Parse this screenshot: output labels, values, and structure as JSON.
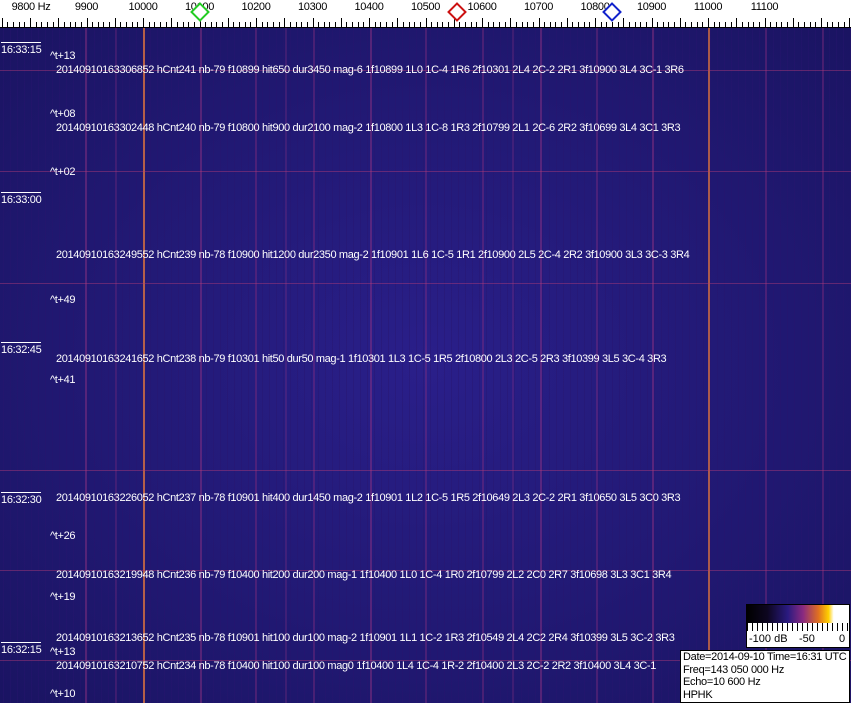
{
  "frequency_axis": {
    "unit_label": "9800 Hz",
    "labels": [
      "9900",
      "10000",
      "10100",
      "10200",
      "10300",
      "10400",
      "10500",
      "10600",
      "10700",
      "10800",
      "10900",
      "11000",
      "11100"
    ]
  },
  "markers": [
    {
      "name": "green-marker",
      "freq": 10100,
      "color": "#22cc22"
    },
    {
      "name": "red-marker",
      "freq": 10555,
      "color": "#cc1111"
    },
    {
      "name": "blue-marker",
      "freq": 10830,
      "color": "#1122cc"
    }
  ],
  "time_labels": [
    "16:33:15",
    "16:33:00",
    "16:32:45",
    "16:32:30",
    "16:32:15"
  ],
  "t_markers": [
    "^t+13",
    "^t+08",
    "^t+02",
    "^t+49",
    "^t+41",
    "^t+26",
    "^t+19",
    "^t+13",
    "^t+10"
  ],
  "detections": [
    "20140910163306852 hCnt241 nb-79 f10899 hit650 dur3450 mag-6 1f10899 1L0 1C-4 1R6 2f10301 2L4 2C-2 2R1 3f10900 3L4 3C-1 3R6",
    "20140910163302448 hCnt240 nb-79 f10800 hit900 dur2100 mag-2 1f10800 1L3 1C-8 1R3 2f10799 2L1 2C-6 2R2 3f10699 3L4 3C1 3R3",
    "20140910163249552 hCnt239 nb-78 f10900 hit1200 dur2350 mag-2 1f10901 1L6 1C-5 1R1 2f10900 2L5 2C-4 2R2 3f10900 3L3 3C-3 3R4",
    "20140910163241652 hCnt238 nb-79 f10301 hit50 dur50 mag-1 1f10301 1L3 1C-5 1R5 2f10800 2L3 2C-5 2R3 3f10399 3L5 3C-4 3R3",
    "20140910163226052 hCnt237 nb-78 f10901 hit400 dur1450 mag-2 1f10901 1L2 1C-5 1R5 2f10649 2L3 2C-2 2R1 3f10650 3L5 3C0 3R3",
    "20140910163219948 hCnt236 nb-79 f10400 hit200 dur200 mag-1 1f10400 1L0 1C-4 1R0 2f10799 2L2 2C0 2R7 3f10698 3L3 3C1 3R4",
    "20140910163213652 hCnt235 nb-78 f10901 hit100 dur100 mag-2 1f10901 1L1 1C-2 1R3 2f10549 2L4 2C2 2R4 3f10399 3L5 3C-2 3R3",
    "20140910163210752 hCnt234 nb-78 f10400 hit100 dur100 mag0 1f10400 1L4 1C-4 1R-2 2f10400 2L3 2C-2 2R2 3f10400 3L4 3C-1"
  ],
  "colorbar": {
    "labels": [
      "-100 dB",
      "-50",
      "0"
    ]
  },
  "info": {
    "date_time": "Date=2014-09-10 Time=16:31 UTC",
    "freq": "Freq=143 050 000 Hz",
    "echo": "Echo=10 600 Hz",
    "station": "HPHK"
  }
}
